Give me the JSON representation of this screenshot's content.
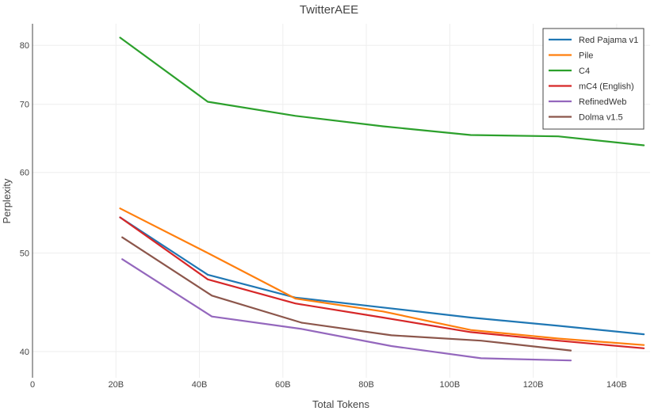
{
  "chart_data": {
    "type": "line",
    "title": "TwitterAEE",
    "xlabel": "Total Tokens",
    "ylabel": "Perplexity",
    "xlim": [
      0,
      148
    ],
    "ylim": [
      37.7,
      84
    ],
    "y_scale": "log",
    "grid": true,
    "legend_position": "top-right",
    "x_ticks": [
      {
        "value": 0,
        "label": "0"
      },
      {
        "value": 20,
        "label": "20B"
      },
      {
        "value": 40,
        "label": "40B"
      },
      {
        "value": 60,
        "label": "60B"
      },
      {
        "value": 80,
        "label": "80B"
      },
      {
        "value": 100,
        "label": "100B"
      },
      {
        "value": 120,
        "label": "120B"
      },
      {
        "value": 140,
        "label": "140B"
      }
    ],
    "y_ticks": [
      {
        "value": 40,
        "label": "40"
      },
      {
        "value": 50,
        "label": "50"
      },
      {
        "value": 60,
        "label": "60"
      },
      {
        "value": 70,
        "label": "70"
      },
      {
        "value": 80,
        "label": "80"
      }
    ],
    "series": [
      {
        "name": "Red Pajama v1",
        "color": "#1f77b4",
        "x": [
          21,
          42,
          63,
          84,
          105,
          126,
          146.5
        ],
        "y": [
          54.2,
          47.6,
          45.2,
          44.2,
          43.2,
          42.4,
          41.6
        ]
      },
      {
        "name": "Pile",
        "color": "#ff7f0e",
        "x": [
          21,
          42,
          63,
          84,
          105,
          126,
          146.5
        ],
        "y": [
          55.3,
          50.0,
          45.1,
          43.8,
          42.0,
          41.2,
          40.6
        ]
      },
      {
        "name": "C4",
        "color": "#2ca02c",
        "x": [
          21,
          42,
          63,
          84,
          105,
          126,
          146.5
        ],
        "y": [
          81.4,
          70.4,
          68.2,
          66.6,
          65.3,
          65.1,
          63.8
        ]
      },
      {
        "name": "mC4 (English)",
        "color": "#d62728",
        "x": [
          21,
          42,
          63,
          84,
          105,
          126,
          146.5
        ],
        "y": [
          54.2,
          47.1,
          44.6,
          43.2,
          41.8,
          41.0,
          40.3
        ]
      },
      {
        "name": "RefinedWeb",
        "color": "#9467bd",
        "x": [
          21.5,
          43,
          64.5,
          86,
          107.5,
          129
        ],
        "y": [
          49.3,
          43.3,
          42.1,
          40.5,
          39.4,
          39.2
        ]
      },
      {
        "name": "Dolma v1.5",
        "color": "#8c564b",
        "x": [
          21.5,
          43,
          64.5,
          86,
          107.5,
          129
        ],
        "y": [
          51.8,
          45.4,
          42.7,
          41.5,
          41.0,
          40.1
        ]
      }
    ]
  }
}
